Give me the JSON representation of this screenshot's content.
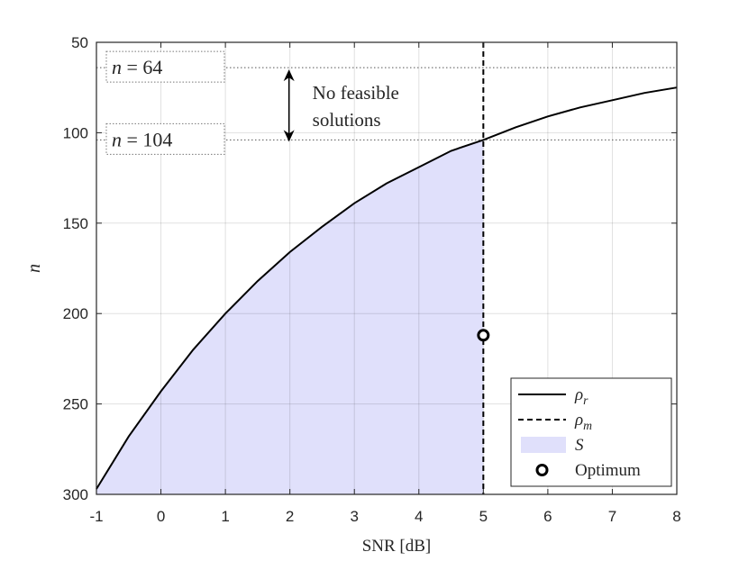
{
  "chart_data": {
    "type": "line",
    "xlabel": "SNR [dB]",
    "ylabel": "n",
    "xlim": [
      -1,
      8
    ],
    "ylim": [
      50,
      300
    ],
    "y_reversed": true,
    "grid": true,
    "xticks": [
      "-1",
      "0",
      "1",
      "2",
      "3",
      "4",
      "5",
      "6",
      "7",
      "8"
    ],
    "yticks": [
      "50",
      "100",
      "150",
      "200",
      "250",
      "300"
    ],
    "series": [
      {
        "name": "ρ_r",
        "style": "solid",
        "color": "#000000",
        "x": [
          -1,
          -0.5,
          0,
          0.5,
          1,
          1.5,
          2,
          2.5,
          3,
          3.5,
          4,
          4.5,
          5,
          5.5,
          6,
          6.5,
          7,
          7.5,
          8
        ],
        "y": [
          297,
          268,
          243,
          220,
          200,
          182,
          166,
          152,
          139,
          128,
          119,
          110,
          104,
          97,
          91,
          86,
          82,
          78,
          75
        ]
      },
      {
        "name": "ρ_m",
        "style": "dashed",
        "color": "#000000",
        "x": [
          5,
          5
        ],
        "y": [
          50,
          300
        ]
      }
    ],
    "shaded_region": {
      "name": "S",
      "color": "#e0e0fb",
      "x_from": -1,
      "x_to": 5
    },
    "markers": [
      {
        "name": "Optimum",
        "x": 5,
        "y": 212
      }
    ],
    "reference_lines": [
      {
        "y": 64,
        "label": "n = 64"
      },
      {
        "y": 104,
        "label": "n = 104"
      }
    ],
    "annotation": {
      "text_lines": [
        "No feasible",
        "solutions"
      ],
      "x": 2,
      "y_from": 64,
      "y_to": 104
    },
    "legend": {
      "position": "bottom-right",
      "entries": [
        {
          "label": "ρ_r",
          "kind": "solid-line"
        },
        {
          "label": "ρ_m",
          "kind": "dashed-line"
        },
        {
          "label": "S",
          "kind": "patch"
        },
        {
          "label": "Optimum",
          "kind": "circle-marker"
        }
      ]
    }
  }
}
